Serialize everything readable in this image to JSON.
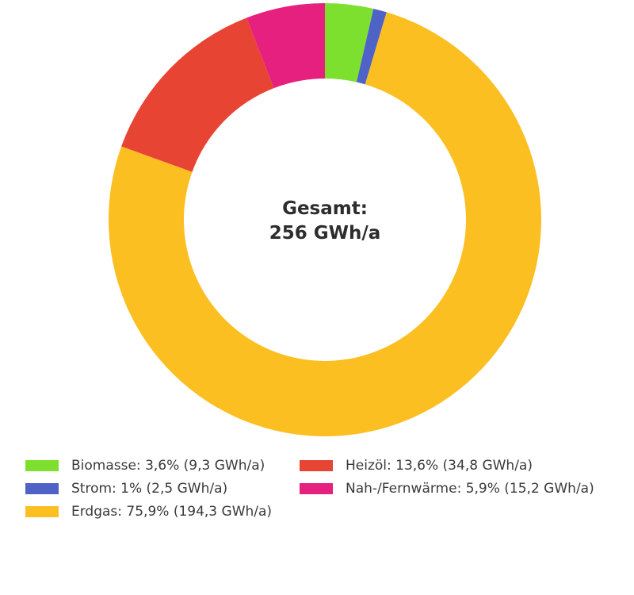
{
  "chart_data": {
    "type": "pie",
    "donut": true,
    "center_label": [
      "Gesamt:",
      "256 GWh/a"
    ],
    "total": 256,
    "unit": "GWh/a",
    "slices": [
      {
        "name": "Biomasse",
        "percent": 3.6,
        "value": 9.3,
        "color": "#7ee02e",
        "legend": "Biomasse: 3,6% (9,3 GWh/a)"
      },
      {
        "name": "Strom",
        "percent": 1.0,
        "value": 2.5,
        "color": "#4f62c6",
        "legend": "Strom: 1% (2,5 GWh/a)"
      },
      {
        "name": "Erdgas",
        "percent": 75.9,
        "value": 194.3,
        "color": "#fcbf22",
        "legend": "Erdgas: 75,9% (194,3 GWh/a)"
      },
      {
        "name": "Heizöl",
        "percent": 13.6,
        "value": 34.8,
        "color": "#e84434",
        "legend": "Heizöl: 13,6% (34,8 GWh/a)"
      },
      {
        "name": "Nah-/Fernwärme",
        "percent": 5.9,
        "value": 15.2,
        "color": "#e6207f",
        "legend": "Nah-/Fernwärme: 5,9% (15,2 GWh/a)"
      }
    ],
    "legend_position": "bottom"
  }
}
